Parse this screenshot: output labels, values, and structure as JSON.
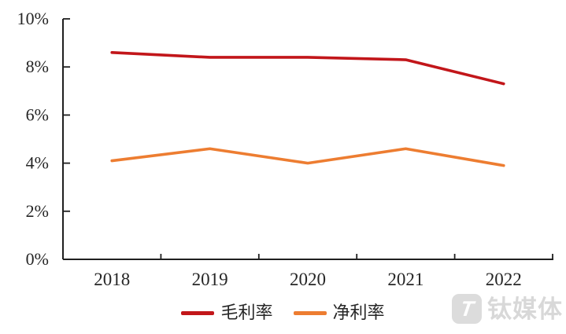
{
  "chart_data": {
    "type": "line",
    "categories": [
      "2018",
      "2019",
      "2020",
      "2021",
      "2022"
    ],
    "series": [
      {
        "name": "毛利率",
        "key": "gross-margin",
        "color": "#c2161a",
        "values": [
          8.6,
          8.4,
          8.4,
          8.3,
          7.3
        ]
      },
      {
        "name": "净利率",
        "key": "net-margin",
        "color": "#ed7d31",
        "values": [
          4.1,
          4.6,
          4.0,
          4.6,
          3.9
        ]
      }
    ],
    "title": "",
    "xlabel": "",
    "ylabel": "",
    "ylim": [
      0,
      10
    ],
    "y_ticks": [
      0,
      2,
      4,
      6,
      8,
      10
    ],
    "y_tick_labels": [
      "0%",
      "2%",
      "4%",
      "6%",
      "8%",
      "10%"
    ],
    "grid": false,
    "legend_position": "bottom",
    "axis_color": "#1f1f1f",
    "label_color": "#262626"
  },
  "watermark": {
    "text": "钛媒体",
    "logo_glyph": "T"
  }
}
